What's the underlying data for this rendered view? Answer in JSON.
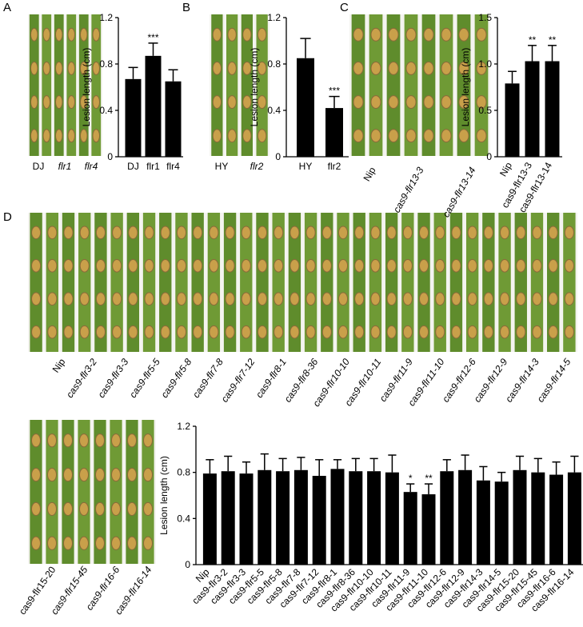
{
  "panels": [
    "A",
    "B",
    "C",
    "D"
  ],
  "photo_labels": {
    "A": [
      "DJ",
      "flr1",
      "flr4"
    ],
    "B": [
      "HY",
      "flr2"
    ],
    "C": [
      "Nip",
      "cas9-flr13-3",
      "cas9-flr13-14"
    ],
    "D_top": [
      "Nip",
      "cas9-flr3-2",
      "cas9-flr3-3",
      "cas9-flr5-5",
      "cas9-flr5-8",
      "cas9-flr7-8",
      "cas9-flr7-12",
      "cas9-flr8-1",
      "cas9-flr8-36",
      "cas9-flr10-10",
      "cas9-flr10-11",
      "cas9-flr11-9",
      "cas9-flr11-10",
      "cas9-flr12-6",
      "cas9-flr12-9",
      "cas9-flr14-3",
      "cas9-flr14-5"
    ],
    "D_bottom": [
      "cas9-flr15-20",
      "cas9-flr15-45",
      "cas9-flr16-6",
      "cas9-flr16-14"
    ]
  },
  "chart_data": [
    {
      "type": "bar",
      "y_label": "Lesion length (cm)",
      "color": "#000000",
      "categories": [
        "DJ",
        "flr1",
        "flr4"
      ],
      "values": [
        0.67,
        0.87,
        0.65
      ],
      "errors": [
        0.1,
        0.11,
        0.1
      ],
      "significance": [
        null,
        "***",
        null
      ],
      "ylim": [
        0,
        1.2
      ],
      "yticks": [
        0,
        0.4,
        0.8,
        1.2
      ]
    },
    {
      "type": "bar",
      "y_label": "Lesion length (cm)",
      "color": "#000000",
      "categories": [
        "HY",
        "flr2"
      ],
      "values": [
        0.85,
        0.42
      ],
      "errors": [
        0.17,
        0.1
      ],
      "significance": [
        null,
        "***"
      ],
      "ylim": [
        0,
        1.2
      ],
      "yticks": [
        0,
        0.4,
        0.8,
        1.2
      ]
    },
    {
      "type": "bar",
      "y_label": "Lesion length (cm)",
      "color": "#000000",
      "categories": [
        "Nip",
        "cas9-flr13-3",
        "cas9-flr13-14"
      ],
      "values": [
        0.79,
        1.03,
        1.03
      ],
      "errors": [
        0.13,
        0.17,
        0.17
      ],
      "significance": [
        null,
        "**",
        "**"
      ],
      "ylim": [
        0,
        1.5
      ],
      "yticks": [
        0,
        0.5,
        {
          "value": 1,
          "label": "1.0"
        },
        1.5
      ]
    },
    {
      "type": "bar",
      "y_label": "Lesion length (cm)",
      "color": "#000000",
      "categories": [
        "Nip",
        "cas9-flr3-2",
        "cas9-flr3-3",
        "cas9-flr5-5",
        "cas9-flr5-8",
        "cas9-flr7-8",
        "cas9-flr7-12",
        "cas9-flr8-1",
        "cas9-flr8-36",
        "cas9-flr10-10",
        "cas9-flr10-11",
        "cas9-flr11-9",
        "cas9-flr11-10",
        "cas9-flr12-6",
        "cas9-flr12-9",
        "cas9-flr14-3",
        "cas9-flr14-5",
        "cas9-flr15-20",
        "cas9-flr15-45",
        "cas9-flr16-6",
        "cas9-flr16-14"
      ],
      "values": [
        0.79,
        0.81,
        0.79,
        0.82,
        0.81,
        0.82,
        0.77,
        0.83,
        0.81,
        0.81,
        0.8,
        0.63,
        0.61,
        0.81,
        0.82,
        0.73,
        0.72,
        0.82,
        0.8,
        0.78,
        0.8
      ],
      "errors": [
        0.12,
        0.13,
        0.1,
        0.14,
        0.11,
        0.11,
        0.14,
        0.08,
        0.11,
        0.11,
        0.15,
        0.07,
        0.09,
        0.1,
        0.13,
        0.12,
        0.08,
        0.12,
        0.12,
        0.11,
        0.14
      ],
      "significance": [
        null,
        null,
        null,
        null,
        null,
        null,
        null,
        null,
        null,
        null,
        null,
        "*",
        "**",
        null,
        null,
        null,
        null,
        null,
        null,
        null,
        null
      ],
      "ylim": [
        0,
        1.2
      ],
      "yticks": [
        0,
        0.4,
        0.8,
        1.2
      ]
    }
  ]
}
